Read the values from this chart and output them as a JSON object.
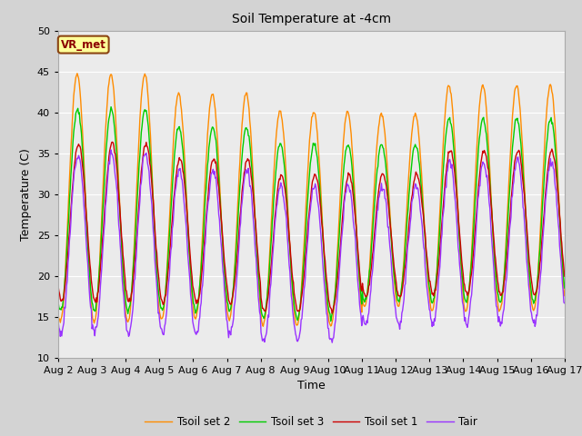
{
  "title": "Soil Temperature at -4cm",
  "xlabel": "Time",
  "ylabel": "Temperature (C)",
  "ylim": [
    10,
    50
  ],
  "annotation_text": "VR_met",
  "annotation_box_color": "#ffff99",
  "annotation_border_color": "#8B4513",
  "annotation_text_color": "#8B0000",
  "colors": {
    "Tair": "#9933FF",
    "Tsoil set 1": "#CC0000",
    "Tsoil set 2": "#FF8C00",
    "Tsoil set 3": "#00CC00"
  },
  "fig_bg_color": "#D3D3D3",
  "plot_bg_color": "#EBEBEB",
  "grid_color": "#FFFFFF",
  "start_day": 2,
  "end_day": 17,
  "n_days": 15,
  "points_per_day": 48
}
